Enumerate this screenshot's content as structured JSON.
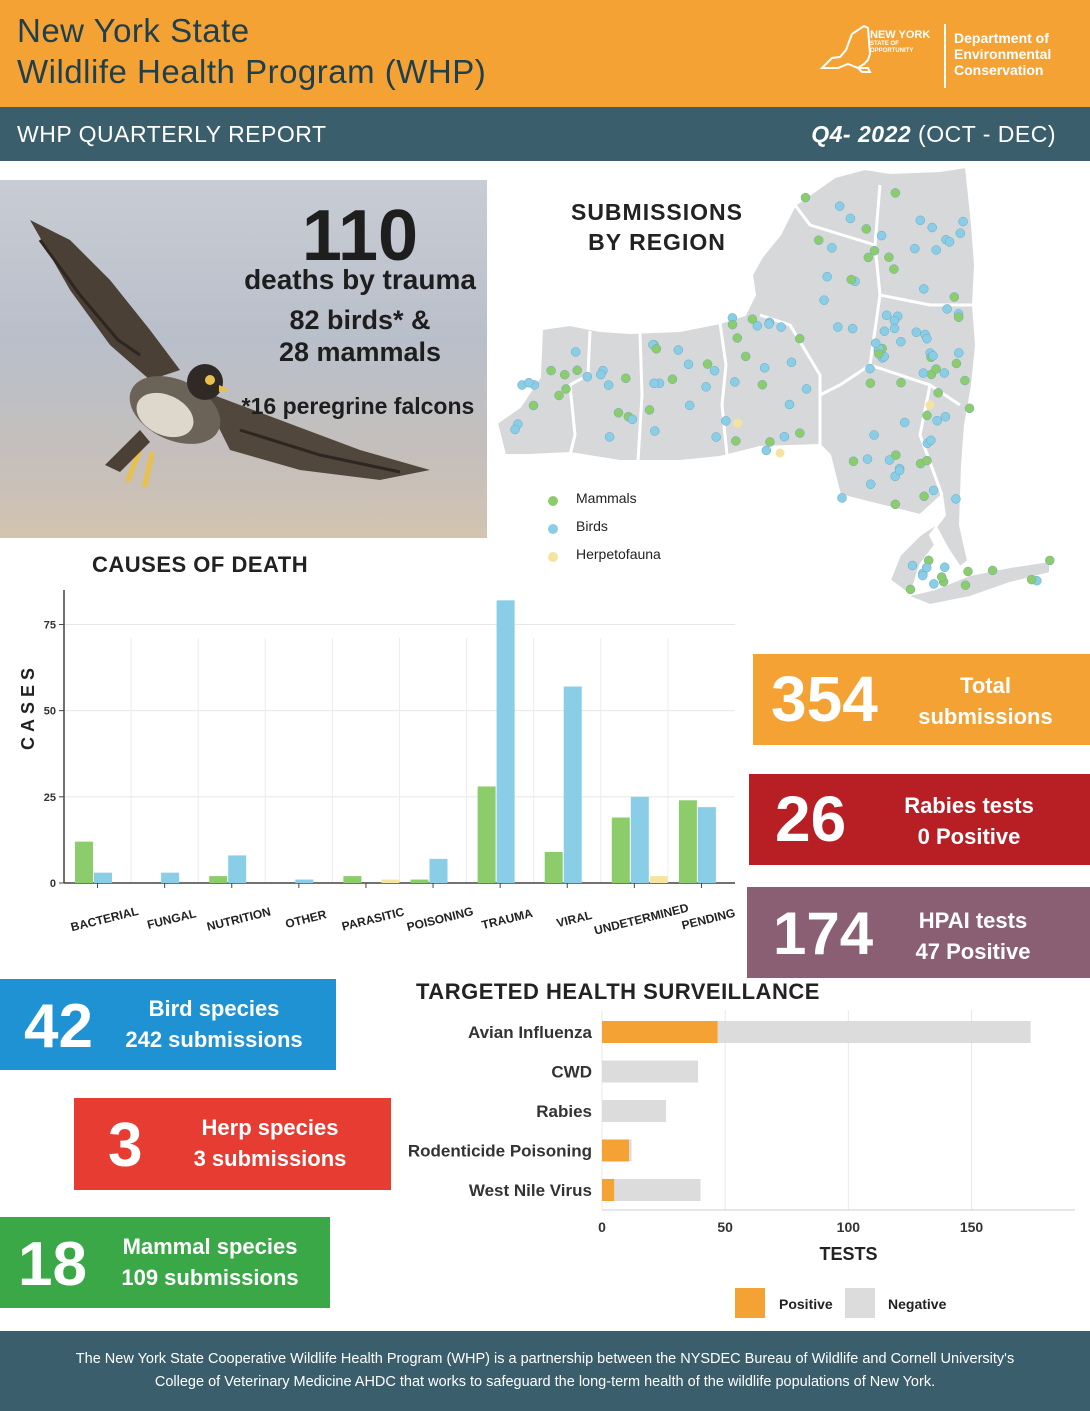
{
  "header": {
    "title_line1": "New York State",
    "title_line2": "Wildlife Health Program (WHP)",
    "logo_state": "NEW YORK",
    "logo_state_sub1": "STATE OF",
    "logo_state_sub2": "OPPORTUNITY",
    "logo_dept_line1": "Department of",
    "logo_dept_line2": "Environmental",
    "logo_dept_line3": "Conservation"
  },
  "subheader": {
    "left": "WHP QUARTERLY REPORT",
    "period_bold": "Q4- 2022",
    "period_range": " (OCT - DEC)"
  },
  "trauma": {
    "number": "110",
    "line1": "deaths by trauma",
    "line2": "82 birds* &",
    "line3": "28 mammals",
    "note": "*16 peregrine falcons"
  },
  "map": {
    "title_line1": "SUBMISSIONS",
    "title_line2": "BY REGION",
    "legend": [
      "Mammals",
      "Birds",
      "Herpetofauna"
    ]
  },
  "colors": {
    "mammals": "#8dcc6a",
    "birds": "#89cde6",
    "herpetofauna": "#f5e3a0",
    "positive": "#f5a235",
    "negative": "#dcdcdc"
  },
  "stats": {
    "total": {
      "num": "354",
      "line1": "Total",
      "line2": "submissions"
    },
    "rabies": {
      "num": "26",
      "line1": "Rabies tests",
      "line2": "0 Positive"
    },
    "hpai": {
      "num": "174",
      "line1": "HPAI tests",
      "line2": "47 Positive"
    },
    "bird": {
      "num": "42",
      "line1": "Bird species",
      "line2": "242 submissions"
    },
    "herp": {
      "num": "3",
      "line1": "Herp species",
      "line2": "3 submissions"
    },
    "mammal": {
      "num": "18",
      "line1": "Mammal species",
      "line2": "109 submissions"
    }
  },
  "chart_data": [
    {
      "type": "bar",
      "title": "CAUSES OF DEATH",
      "ylabel": "CASES",
      "xlabel": "",
      "ylim": [
        0,
        85
      ],
      "yticks": [
        0,
        25,
        50,
        75
      ],
      "categories": [
        "BACTERIAL",
        "FUNGAL",
        "NUTRITION",
        "OTHER",
        "PARASITIC",
        "POISONING",
        "TRAUMA",
        "VIRAL",
        "UNDETERMINED",
        "PENDING"
      ],
      "series": [
        {
          "name": "Mammals",
          "values": [
            12,
            0,
            2,
            0,
            2,
            1,
            28,
            9,
            19,
            24
          ]
        },
        {
          "name": "Birds",
          "values": [
            3,
            3,
            8,
            1,
            0,
            7,
            82,
            57,
            25,
            22
          ]
        },
        {
          "name": "Herpetofauna",
          "values": [
            0,
            0,
            0,
            0,
            1,
            0,
            0,
            0,
            2,
            0
          ]
        }
      ],
      "grid": true,
      "legend": "none"
    },
    {
      "type": "bar",
      "orientation": "horizontal",
      "stacked": true,
      "title": "TARGETED HEALTH SURVEILLANCE",
      "xlabel": "TESTS",
      "ylabel": "",
      "xlim": [
        0,
        192
      ],
      "xticks": [
        0,
        50,
        100,
        150
      ],
      "categories": [
        "Avian Influenza",
        "CWD",
        "Rabies",
        "Rodenticide Poisoning",
        "West Nile Virus"
      ],
      "series": [
        {
          "name": "Positive",
          "values": [
            47,
            0,
            0,
            11,
            5
          ]
        },
        {
          "name": "Negative",
          "values": [
            127,
            39,
            26,
            1,
            35
          ]
        }
      ],
      "grid": true,
      "legend": "bottom-right"
    }
  ],
  "footer": {
    "line1": "The New York State Cooperative Wildlife Health Program (WHP) is a partnership between the NYSDEC Bureau of Wildlife and Cornell University's",
    "line2": "College of Veterinary Medicine AHDC that works to safeguard the long-term health of the wildlife populations of New York."
  }
}
